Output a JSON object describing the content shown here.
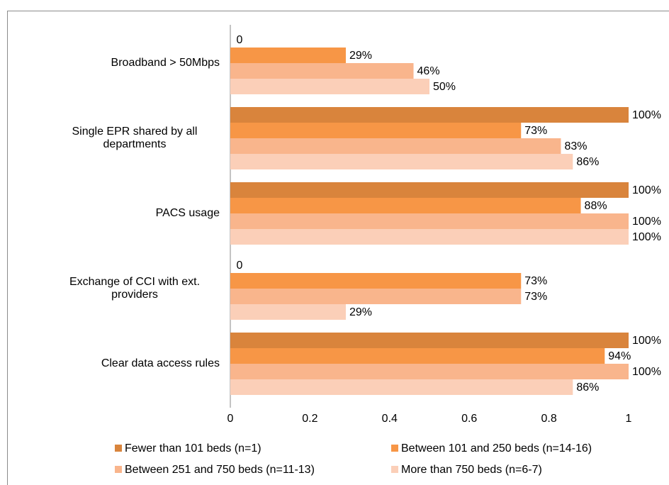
{
  "chart_data": {
    "type": "bar",
    "orientation": "horizontal",
    "categories": [
      "Broadband > 50Mbps",
      "Single EPR shared by all departments",
      "PACS usage",
      "Exchange of CCI with ext. providers",
      "Clear data access rules"
    ],
    "series": [
      {
        "name": "Fewer than 101 beds (n=1)",
        "color": "#d9843c",
        "values": [
          0,
          1,
          1,
          0,
          1
        ],
        "value_labels": [
          "0",
          "100%",
          "100%",
          "0",
          "100%"
        ]
      },
      {
        "name": "Between 101 and 250 beds (n=14-16)",
        "color": "#f79646",
        "values": [
          0.29,
          0.73,
          0.88,
          0.73,
          0.94
        ],
        "value_labels": [
          "29%",
          "73%",
          "88%",
          "73%",
          "94%"
        ]
      },
      {
        "name": "Between 251 and 750 beds (n=11-13)",
        "color": "#f9b58c",
        "values": [
          0.46,
          0.83,
          1,
          0.73,
          1
        ],
        "value_labels": [
          "46%",
          "83%",
          "100%",
          "73%",
          "100%"
        ]
      },
      {
        "name": "More than 750 beds (n=6-7)",
        "color": "#fbcfb8",
        "values": [
          0.5,
          0.86,
          1,
          0.29,
          0.86
        ],
        "value_labels": [
          "50%",
          "86%",
          "100%",
          "29%",
          "86%"
        ]
      }
    ],
    "xlim": [
      0,
      1
    ],
    "xticks": [
      0,
      0.2,
      0.4,
      0.6,
      0.8,
      1
    ],
    "grid": false,
    "legend": "bottom"
  }
}
